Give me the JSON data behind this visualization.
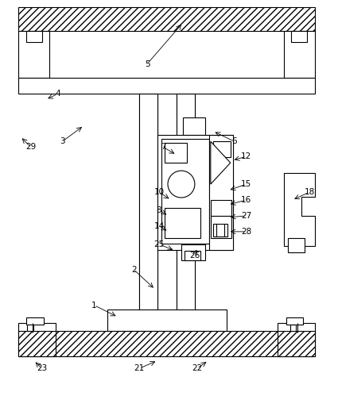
{
  "bg_color": "#ffffff",
  "lc": "#000000",
  "lw": 0.8,
  "figsize": [
    4.25,
    4.99
  ],
  "dpi": 100,
  "annotations": [
    [
      "1",
      118,
      385,
      148,
      400
    ],
    [
      "2",
      168,
      340,
      195,
      365
    ],
    [
      "3",
      78,
      178,
      105,
      158
    ],
    [
      "4",
      72,
      118,
      57,
      125
    ],
    [
      "5",
      185,
      80,
      230,
      28
    ],
    [
      "6",
      295,
      178,
      268,
      165
    ],
    [
      "7",
      205,
      185,
      222,
      195
    ],
    [
      "8",
      200,
      265,
      212,
      272
    ],
    [
      "10",
      200,
      242,
      215,
      252
    ],
    [
      "12",
      310,
      197,
      292,
      202
    ],
    [
      "14",
      200,
      285,
      212,
      292
    ],
    [
      "15",
      310,
      232,
      287,
      240
    ],
    [
      "16",
      310,
      252,
      287,
      258
    ],
    [
      "18",
      390,
      242,
      368,
      252
    ],
    [
      "21",
      175,
      465,
      198,
      455
    ],
    [
      "22",
      248,
      465,
      262,
      455
    ],
    [
      "23",
      52,
      465,
      42,
      455
    ],
    [
      "25",
      200,
      308,
      220,
      316
    ],
    [
      "26",
      245,
      322,
      248,
      312
    ],
    [
      "27",
      310,
      272,
      287,
      274
    ],
    [
      "28",
      310,
      292,
      287,
      292
    ],
    [
      "29",
      38,
      185,
      25,
      172
    ]
  ]
}
